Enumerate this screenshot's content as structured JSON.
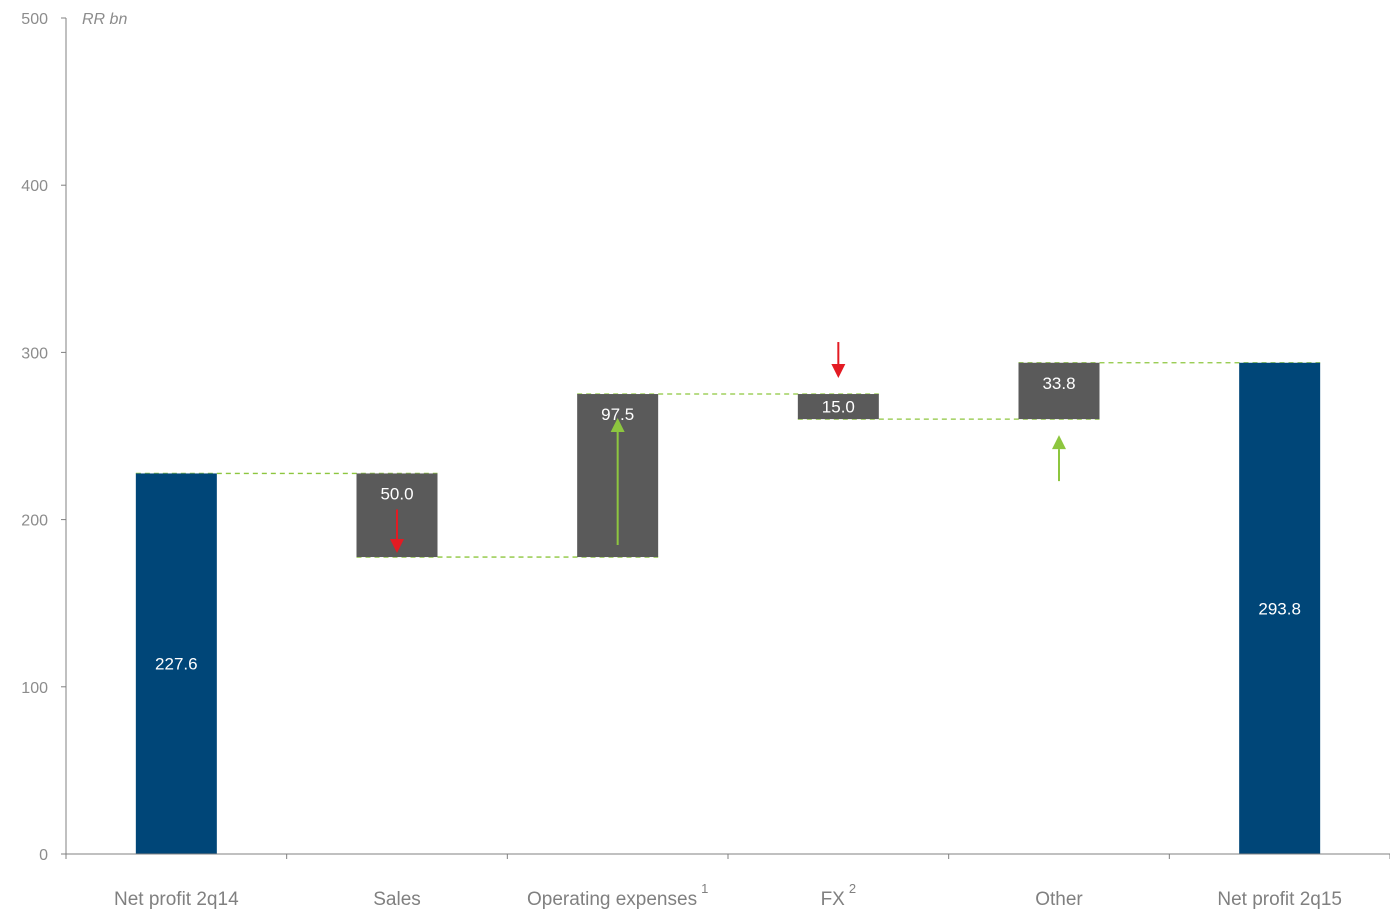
{
  "chart_data": {
    "type": "bar",
    "subtype": "waterfall",
    "unit_label": "RR bn",
    "ylim": [
      0,
      500
    ],
    "y_ticks": [
      0,
      100,
      200,
      300,
      400,
      500
    ],
    "grid": false,
    "categories": [
      {
        "label": "Net profit 2q14",
        "sup": ""
      },
      {
        "label": "Sales",
        "sup": ""
      },
      {
        "label": "Operating expenses",
        "sup": "1"
      },
      {
        "label": "FX",
        "sup": "2"
      },
      {
        "label": "Other",
        "sup": ""
      },
      {
        "label": "Net profit 2q15",
        "sup": ""
      }
    ],
    "bars": [
      {
        "kind": "total",
        "start": 0,
        "end": 227.6,
        "label": "227.6",
        "arrow": "none"
      },
      {
        "kind": "change",
        "start": 227.6,
        "end": 177.6,
        "label": "50.0",
        "arrow": "down"
      },
      {
        "kind": "change",
        "start": 177.6,
        "end": 275.1,
        "label": "97.5",
        "arrow": "up"
      },
      {
        "kind": "change",
        "start": 275.1,
        "end": 260.1,
        "label": "15.0",
        "arrow": "down"
      },
      {
        "kind": "change",
        "start": 260.1,
        "end": 293.8,
        "label": "33.8",
        "arrow": "up"
      },
      {
        "kind": "total",
        "start": 0,
        "end": 293.8,
        "label": "293.8",
        "arrow": "none"
      }
    ],
    "colors": {
      "total": "#004678",
      "change": "#5a5a5a",
      "connector": "#8dc63f",
      "arrow_up": "#8dc63f",
      "arrow_down": "#e31b23",
      "axis": "#808080"
    }
  }
}
